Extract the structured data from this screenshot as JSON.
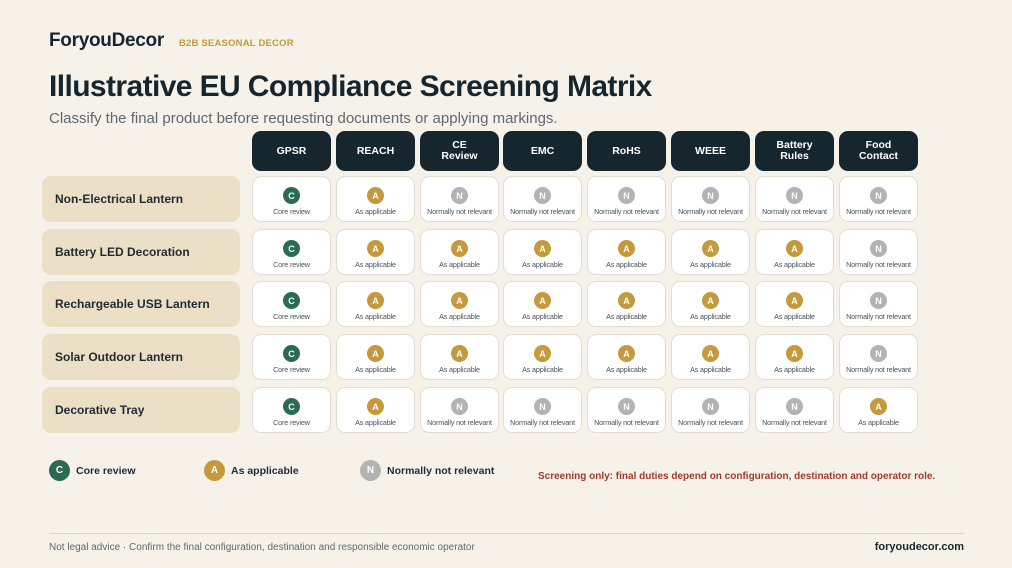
{
  "header": {
    "brand": "ForyouDecor",
    "tag": "B2B SEASONAL DECOR",
    "title": "Illustrative EU Compliance Screening Matrix",
    "subtitle": "Classify the final product before requesting documents or applying markings."
  },
  "columns": [
    "GPSR",
    "REACH",
    "CE\nReview",
    "EMC",
    "RoHS",
    "WEEE",
    "Battery\nRules",
    "Food\nContact"
  ],
  "status_labels": {
    "C": "Core review",
    "A": "As applicable",
    "N": "Normally not relevant"
  },
  "rows": [
    {
      "name": "Non-Electrical Lantern",
      "cells": [
        "C",
        "A",
        "N",
        "N",
        "N",
        "N",
        "N",
        "N"
      ]
    },
    {
      "name": "Battery LED Decoration",
      "cells": [
        "C",
        "A",
        "A",
        "A",
        "A",
        "A",
        "A",
        "N"
      ]
    },
    {
      "name": "Rechargeable USB Lantern",
      "cells": [
        "C",
        "A",
        "A",
        "A",
        "A",
        "A",
        "A",
        "N"
      ]
    },
    {
      "name": "Solar Outdoor Lantern",
      "cells": [
        "C",
        "A",
        "A",
        "A",
        "A",
        "A",
        "A",
        "N"
      ]
    },
    {
      "name": "Decorative Tray",
      "cells": [
        "C",
        "A",
        "N",
        "N",
        "N",
        "N",
        "N",
        "A"
      ]
    }
  ],
  "legend": [
    {
      "symbol": "C",
      "label": "Core review"
    },
    {
      "symbol": "A",
      "label": "As applicable"
    },
    {
      "symbol": "N",
      "label": "Normally not relevant"
    }
  ],
  "note": "Screening only: final duties depend on configuration, destination and operator role.",
  "footer": {
    "disclaimer": "Not legal advice · Confirm the final configuration, destination and responsible economic operator",
    "site": "foryoudecor.com"
  },
  "colors": {
    "core": "#2a6b52",
    "applicable": "#c49a3c",
    "not_relevant": "#b3b3b3",
    "header_dark": "#16262e",
    "note_red": "#a23a2c"
  }
}
